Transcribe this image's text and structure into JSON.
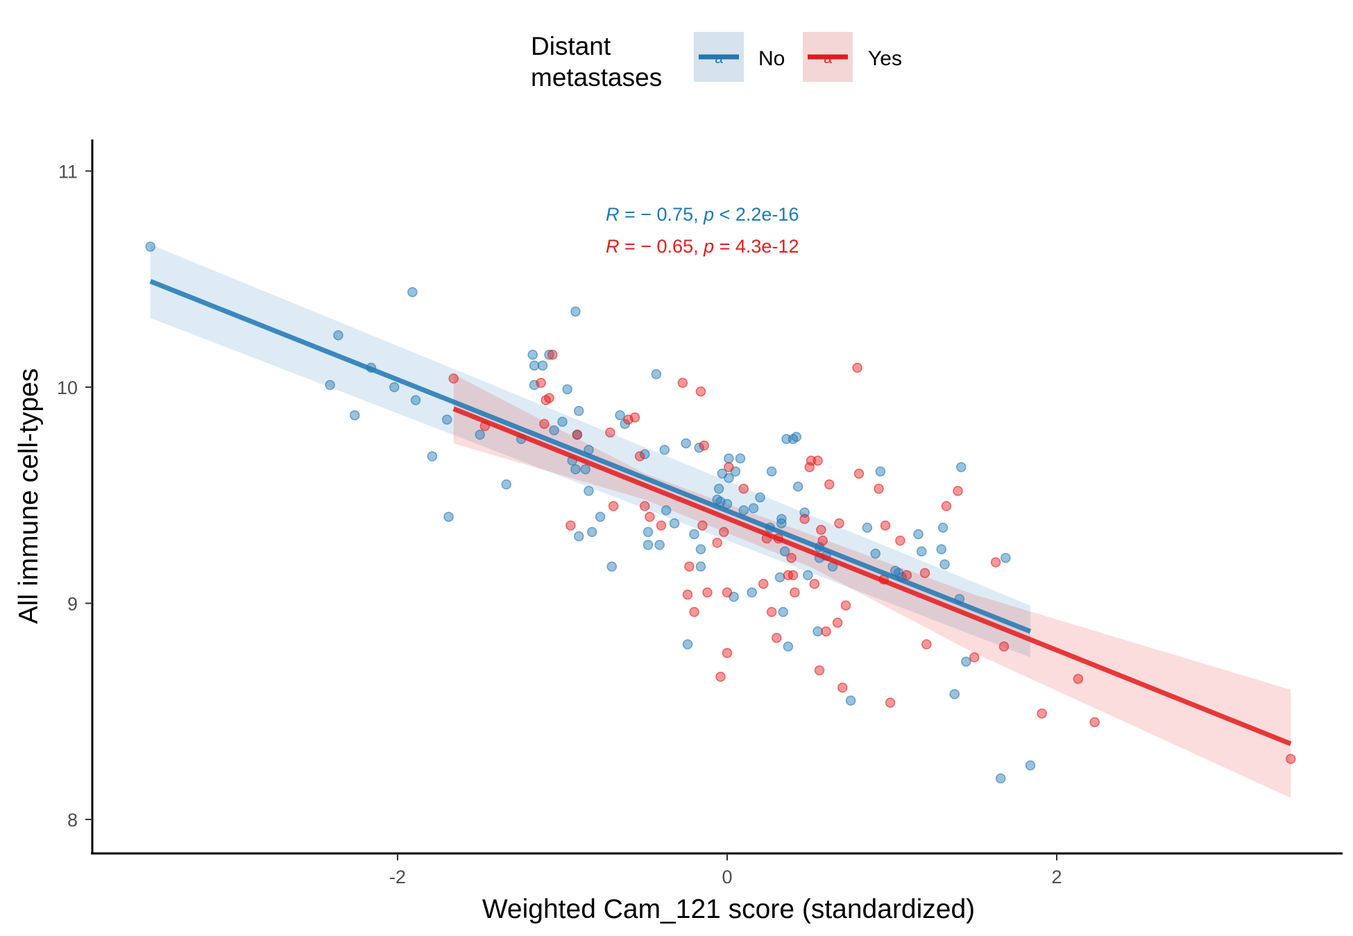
{
  "chart_data": {
    "type": "scatter",
    "xlabel": "Weighted Cam_121 score (standardized)",
    "ylabel": "All immune cell-types",
    "xlim": [
      -3.84,
      3.84
    ],
    "ylim": [
      7.86,
      11.15
    ],
    "x_ticks": [
      -2,
      0,
      2
    ],
    "x_tick_labels": [
      "-2",
      "0",
      "2"
    ],
    "y_ticks": [
      8,
      9,
      10,
      11
    ],
    "y_tick_labels": [
      "8",
      "9",
      "10",
      "11"
    ],
    "grid": false,
    "legend": {
      "title": "Distant\nmetastases",
      "placement": "top",
      "entries": [
        {
          "label": "No",
          "color": "#1f77b4",
          "band_color": "#d6e2ec",
          "key_glyph": "a"
        },
        {
          "label": "Yes",
          "color": "#e31a1c",
          "band_color": "#f4d6d6",
          "key_glyph": "a"
        }
      ]
    },
    "annotations": [
      {
        "prefix": "R",
        "text": " = − 0.75, ",
        "p": "p",
        "text2": " < 2.2e-16",
        "color": "#1f77b4"
      },
      {
        "prefix": "R",
        "text": " = − 0.65, ",
        "p": "p",
        "text2": " = 4.3e-12",
        "color": "#e31a1c"
      }
    ],
    "series": [
      {
        "name": "No",
        "color": "#1f77b4",
        "fit": {
          "x0": -3.5,
          "y0": 10.49,
          "x1": 1.84,
          "y1": 8.87
        },
        "band": {
          "upper": [
            [
              -3.5,
              10.66
            ],
            [
              1.84,
              8.99
            ]
          ],
          "lower": [
            [
              -3.5,
              10.32
            ],
            [
              1.84,
              8.75
            ]
          ]
        },
        "points": [
          [
            -3.5,
            10.65
          ],
          [
            -2.36,
            10.24
          ],
          [
            -2.41,
            10.01
          ],
          [
            -2.26,
            9.87
          ],
          [
            -2.16,
            10.09
          ],
          [
            -2.02,
            10.0
          ],
          [
            -1.91,
            10.44
          ],
          [
            -1.89,
            9.94
          ],
          [
            -1.79,
            9.68
          ],
          [
            -1.7,
            9.85
          ],
          [
            -1.69,
            9.4
          ],
          [
            -1.5,
            9.78
          ],
          [
            -1.34,
            9.55
          ],
          [
            -1.25,
            9.76
          ],
          [
            -1.18,
            10.15
          ],
          [
            -1.17,
            10.1
          ],
          [
            -1.17,
            10.01
          ],
          [
            -1.12,
            10.1
          ],
          [
            -1.08,
            10.15
          ],
          [
            -1.05,
            9.8
          ],
          [
            -1.0,
            9.84
          ],
          [
            -0.97,
            9.99
          ],
          [
            -0.94,
            9.66
          ],
          [
            -0.92,
            9.62
          ],
          [
            -0.92,
            10.35
          ],
          [
            -0.91,
            9.78
          ],
          [
            -0.9,
            9.89
          ],
          [
            -0.9,
            9.31
          ],
          [
            -0.86,
            9.62
          ],
          [
            -0.84,
            9.71
          ],
          [
            -0.84,
            9.52
          ],
          [
            -0.82,
            9.33
          ],
          [
            -0.77,
            9.4
          ],
          [
            -0.7,
            9.17
          ],
          [
            -0.65,
            9.87
          ],
          [
            -0.62,
            9.83
          ],
          [
            -0.5,
            9.69
          ],
          [
            -0.48,
            9.33
          ],
          [
            -0.48,
            9.27
          ],
          [
            -0.43,
            10.06
          ],
          [
            -0.41,
            9.27
          ],
          [
            -0.38,
            9.71
          ],
          [
            -0.37,
            9.43
          ],
          [
            -0.32,
            9.37
          ],
          [
            -0.25,
            9.74
          ],
          [
            -0.24,
            8.81
          ],
          [
            -0.2,
            9.32
          ],
          [
            -0.17,
            9.72
          ],
          [
            -0.16,
            9.25
          ],
          [
            -0.16,
            9.17
          ],
          [
            -0.06,
            9.48
          ],
          [
            -0.05,
            9.53
          ],
          [
            -0.04,
            9.47
          ],
          [
            -0.03,
            9.6
          ],
          [
            0.0,
            9.46
          ],
          [
            0.01,
            9.58
          ],
          [
            0.01,
            9.67
          ],
          [
            0.04,
            9.03
          ],
          [
            0.05,
            9.61
          ],
          [
            0.08,
            9.67
          ],
          [
            0.1,
            9.43
          ],
          [
            0.15,
            9.05
          ],
          [
            0.16,
            9.44
          ],
          [
            0.2,
            9.49
          ],
          [
            0.26,
            9.35
          ],
          [
            0.27,
            9.61
          ],
          [
            0.32,
            9.12
          ],
          [
            0.33,
            9.37
          ],
          [
            0.33,
            9.39
          ],
          [
            0.34,
            8.96
          ],
          [
            0.35,
            9.24
          ],
          [
            0.36,
            9.76
          ],
          [
            0.37,
            8.8
          ],
          [
            0.4,
            9.76
          ],
          [
            0.42,
            9.77
          ],
          [
            0.43,
            9.54
          ],
          [
            0.47,
            9.42
          ],
          [
            0.49,
            9.13
          ],
          [
            0.55,
            8.87
          ],
          [
            0.56,
            9.21
          ],
          [
            0.56,
            9.26
          ],
          [
            0.6,
            9.22
          ],
          [
            0.64,
            9.17
          ],
          [
            0.75,
            8.55
          ],
          [
            0.85,
            9.35
          ],
          [
            0.9,
            9.23
          ],
          [
            0.93,
            9.61
          ],
          [
            1.02,
            9.15
          ],
          [
            1.04,
            9.14
          ],
          [
            1.06,
            9.12
          ],
          [
            1.16,
            9.32
          ],
          [
            1.18,
            9.24
          ],
          [
            1.3,
            9.25
          ],
          [
            1.31,
            9.35
          ],
          [
            1.32,
            9.18
          ],
          [
            1.38,
            8.58
          ],
          [
            1.41,
            9.02
          ],
          [
            1.42,
            9.63
          ],
          [
            1.45,
            8.73
          ],
          [
            1.66,
            8.19
          ],
          [
            1.69,
            9.21
          ],
          [
            1.84,
            8.25
          ]
        ]
      },
      {
        "name": "Yes",
        "color": "#e31a1c",
        "fit": {
          "x0": -1.66,
          "y0": 9.9,
          "x1": 3.42,
          "y1": 8.35
        },
        "band": {
          "upper": [
            [
              -1.66,
              10.06
            ],
            [
              -0.5,
              9.6
            ],
            [
              0.5,
              9.32
            ],
            [
              1.5,
              9.04
            ],
            [
              3.42,
              8.6
            ]
          ],
          "lower": [
            [
              -1.66,
              9.74
            ],
            [
              -0.5,
              9.48
            ],
            [
              0.5,
              9.17
            ],
            [
              1.5,
              8.77
            ],
            [
              3.42,
              8.1
            ]
          ]
        },
        "points": [
          [
            -1.66,
            10.04
          ],
          [
            -1.47,
            9.82
          ],
          [
            -1.13,
            10.02
          ],
          [
            -1.11,
            9.83
          ],
          [
            -1.1,
            9.94
          ],
          [
            -1.08,
            9.95
          ],
          [
            -1.06,
            10.15
          ],
          [
            -0.95,
            9.36
          ],
          [
            -0.91,
            9.78
          ],
          [
            -0.71,
            9.79
          ],
          [
            -0.69,
            9.45
          ],
          [
            -0.6,
            9.85
          ],
          [
            -0.56,
            9.86
          ],
          [
            -0.53,
            9.68
          ],
          [
            -0.5,
            9.45
          ],
          [
            -0.47,
            9.4
          ],
          [
            -0.4,
            9.36
          ],
          [
            -0.27,
            10.02
          ],
          [
            -0.24,
            9.04
          ],
          [
            -0.23,
            9.17
          ],
          [
            -0.2,
            8.96
          ],
          [
            -0.16,
            9.98
          ],
          [
            -0.15,
            9.36
          ],
          [
            -0.14,
            9.73
          ],
          [
            -0.12,
            9.05
          ],
          [
            -0.06,
            9.28
          ],
          [
            -0.04,
            8.66
          ],
          [
            -0.02,
            9.33
          ],
          [
            0.0,
            8.77
          ],
          [
            0.0,
            9.05
          ],
          [
            0.01,
            9.63
          ],
          [
            0.1,
            9.53
          ],
          [
            0.22,
            9.09
          ],
          [
            0.24,
            9.3
          ],
          [
            0.27,
            8.96
          ],
          [
            0.3,
            8.84
          ],
          [
            0.31,
            9.3
          ],
          [
            0.37,
            9.13
          ],
          [
            0.39,
            9.21
          ],
          [
            0.4,
            9.13
          ],
          [
            0.41,
            9.05
          ],
          [
            0.47,
            9.39
          ],
          [
            0.5,
            9.63
          ],
          [
            0.51,
            9.66
          ],
          [
            0.53,
            9.09
          ],
          [
            0.55,
            9.66
          ],
          [
            0.56,
            8.69
          ],
          [
            0.57,
            9.34
          ],
          [
            0.58,
            9.29
          ],
          [
            0.6,
            8.87
          ],
          [
            0.62,
            9.55
          ],
          [
            0.67,
            8.91
          ],
          [
            0.68,
            9.37
          ],
          [
            0.7,
            8.61
          ],
          [
            0.72,
            8.99
          ],
          [
            0.79,
            10.09
          ],
          [
            0.8,
            9.6
          ],
          [
            0.92,
            9.53
          ],
          [
            0.95,
            9.11
          ],
          [
            0.96,
            9.36
          ],
          [
            0.99,
            8.54
          ],
          [
            1.05,
            9.29
          ],
          [
            1.09,
            9.13
          ],
          [
            1.2,
            9.14
          ],
          [
            1.21,
            8.81
          ],
          [
            1.33,
            9.45
          ],
          [
            1.4,
            9.52
          ],
          [
            1.5,
            8.75
          ],
          [
            1.63,
            9.19
          ],
          [
            1.68,
            8.8
          ],
          [
            1.91,
            8.49
          ],
          [
            2.13,
            8.65
          ],
          [
            2.23,
            8.45
          ],
          [
            3.42,
            8.28
          ]
        ]
      }
    ]
  }
}
